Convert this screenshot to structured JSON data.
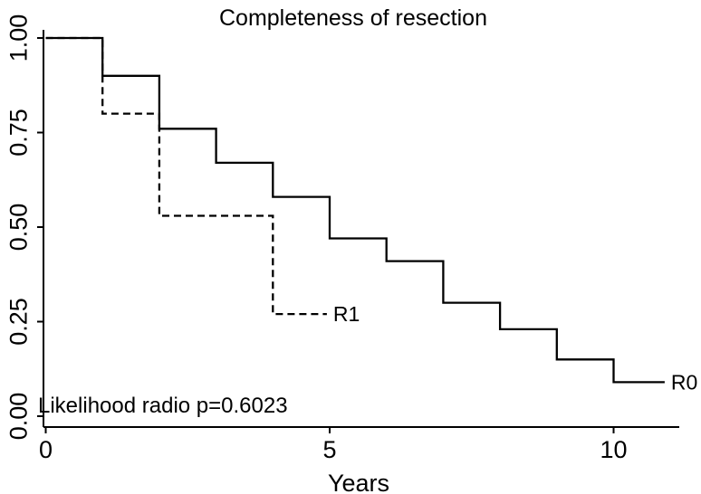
{
  "chart_data": {
    "type": "line",
    "subtype": "kaplan-meier-step",
    "title": "Completeness of resection",
    "xlabel": "Years",
    "ylabel": "",
    "annotation": "Likelihood radio p=0.6023",
    "x_ticks": [
      0,
      5,
      10
    ],
    "y_ticks": [
      0.0,
      0.25,
      0.5,
      0.75,
      1.0
    ],
    "y_tick_labels": [
      "0.00",
      "0.25",
      "0.50",
      "0.75",
      "1.00"
    ],
    "xlim": [
      0,
      11.1
    ],
    "ylim": [
      0.0,
      1.0
    ],
    "grid": false,
    "legend_position": "end-of-line-labels",
    "series": [
      {
        "name": "R1",
        "label": "R1",
        "line_style": "dashed",
        "times": [
          0,
          1,
          2,
          4
        ],
        "survival": [
          1.0,
          0.8,
          0.53,
          0.27
        ],
        "end_time": 4.95
      },
      {
        "name": "R0",
        "label": "R0",
        "line_style": "solid",
        "times": [
          0,
          1,
          2,
          3,
          4,
          5,
          6,
          7,
          8,
          9,
          10
        ],
        "survival": [
          1.0,
          0.9,
          0.76,
          0.67,
          0.58,
          0.47,
          0.41,
          0.3,
          0.23,
          0.15,
          0.09
        ],
        "end_time": 10.9
      }
    ],
    "colors": {
      "line": "#000000",
      "background": "#ffffff",
      "text": "#000000"
    }
  }
}
